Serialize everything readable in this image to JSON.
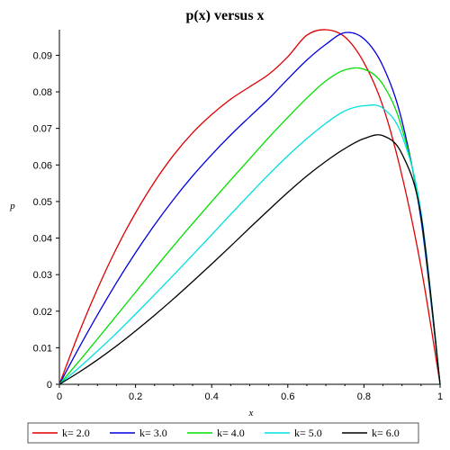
{
  "chart_data": {
    "type": "line",
    "title": "p(x) versus x",
    "xlabel": "x",
    "ylabel": "p",
    "xlim": [
      0,
      1
    ],
    "ylim": [
      0,
      0.097
    ],
    "x_ticks": [
      "0",
      "0.2",
      "0.4",
      "0.6",
      "0.8",
      "1"
    ],
    "x_tick_values": [
      0,
      0.2,
      0.4,
      0.6,
      0.8,
      1
    ],
    "y_ticks": [
      "0",
      "0.01",
      "0.02",
      "0.03",
      "0.04",
      "0.05",
      "0.06",
      "0.07",
      "0.08",
      "0.09"
    ],
    "y_tick_values": [
      0,
      0.01,
      0.02,
      0.03,
      0.04,
      0.05,
      0.06,
      0.07,
      0.08,
      0.09
    ],
    "grid": false,
    "legend_position": "bottom",
    "x": [
      0,
      0.05,
      0.1,
      0.15,
      0.2,
      0.25,
      0.3,
      0.35,
      0.4,
      0.45,
      0.5,
      0.55,
      0.6,
      0.65,
      0.7,
      0.75,
      0.8,
      0.85,
      0.9,
      0.95,
      1.0
    ],
    "series": [
      {
        "name": "k= 2.0",
        "color": "#e00000",
        "values": [
          0,
          0.0137,
          0.0261,
          0.0372,
          0.0469,
          0.0554,
          0.0627,
          0.0688,
          0.0738,
          0.078,
          0.0814,
          0.0848,
          0.0896,
          0.0955,
          0.097,
          0.095,
          0.088,
          0.076,
          0.057,
          0.032,
          0
        ]
      },
      {
        "name": "k= 3.0",
        "color": "#0000e0",
        "values": [
          0,
          0.0097,
          0.019,
          0.0278,
          0.036,
          0.0436,
          0.0506,
          0.057,
          0.0628,
          0.0682,
          0.0732,
          0.0781,
          0.0835,
          0.0887,
          0.093,
          0.0962,
          0.0945,
          0.087,
          0.072,
          0.045,
          0
        ]
      },
      {
        "name": "k= 4.0",
        "color": "#00e000",
        "values": [
          0,
          0.0061,
          0.0124,
          0.0188,
          0.0252,
          0.0316,
          0.0379,
          0.044,
          0.05,
          0.0559,
          0.0617,
          0.0675,
          0.073,
          0.0783,
          0.083,
          0.086,
          0.0862,
          0.082,
          0.07,
          0.046,
          0
        ]
      },
      {
        "name": "k= 5.0",
        "color": "#00e0e0",
        "values": [
          0,
          0.0044,
          0.0091,
          0.014,
          0.0192,
          0.0245,
          0.0299,
          0.0354,
          0.0409,
          0.0465,
          0.052,
          0.0574,
          0.0625,
          0.0672,
          0.0714,
          0.0748,
          0.0762,
          0.0755,
          0.068,
          0.047,
          0
        ]
      },
      {
        "name": "k= 6.0",
        "color": "#000000",
        "values": [
          0,
          0.0032,
          0.0067,
          0.0105,
          0.0146,
          0.0189,
          0.0234,
          0.0281,
          0.0329,
          0.0378,
          0.0428,
          0.0477,
          0.0525,
          0.057,
          0.061,
          0.0645,
          0.0672,
          0.068,
          0.063,
          0.046,
          0
        ]
      }
    ]
  }
}
